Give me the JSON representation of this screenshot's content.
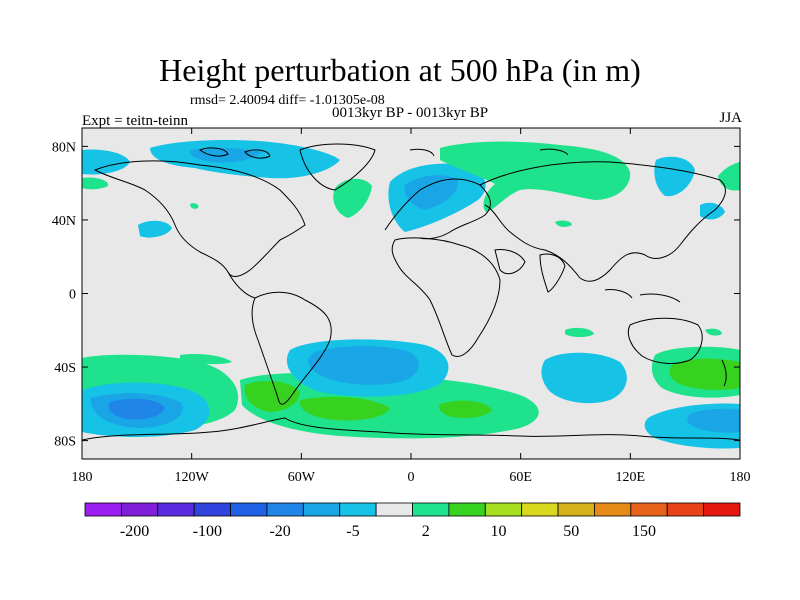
{
  "title": "Height perturbation at 500 hPa (in m)",
  "stats": "rmsd= 2.40094 diff= -1.01305e-08",
  "subtitle": "0013kyr BP - 0013kyr BP",
  "left_label": "Expt = teitn-teinn",
  "right_label": "JJA",
  "lat_ticks": [
    "80N",
    "40N",
    "0",
    "40S",
    "80S"
  ],
  "lon_ticks": [
    "180",
    "120W",
    "60W",
    "0",
    "60E",
    "120E",
    "180"
  ],
  "colorbar": {
    "colors": [
      "#9a1ff0",
      "#7f1fd9",
      "#5b2be0",
      "#2f44dc",
      "#1f62e6",
      "#1f86e8",
      "#1aa6e6",
      "#16c3e6",
      "#e8e8e8",
      "#1fe38c",
      "#37d11f",
      "#a6df1f",
      "#d8d81f",
      "#d6b21a",
      "#e58a17",
      "#e6621a",
      "#e8421a",
      "#e6170f"
    ],
    "labels": [
      "-200",
      "-100",
      "-20",
      "-5",
      "2",
      "10",
      "50",
      "150"
    ],
    "colors_meaning": {
      "low_blue_light": "#11c6e6",
      "mid_blue": "#1aa0e8",
      "deep_blue": "#1f73e6",
      "light_green": "#1fe38c",
      "green": "#37d11f",
      "background": "#e8e8e8"
    }
  }
}
